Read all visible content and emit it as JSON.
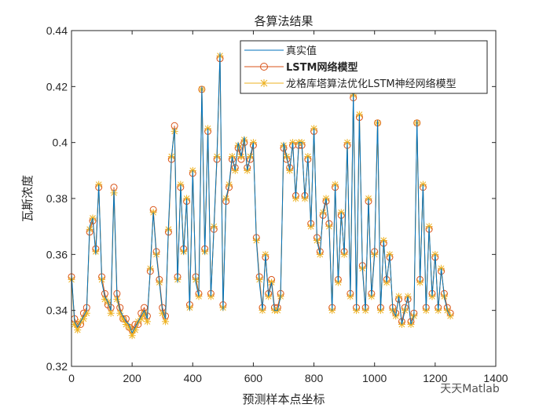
{
  "chart_data": {
    "type": "line",
    "title": "各算法结果",
    "xlabel": "预测样本点坐标",
    "ylabel": "瓦斯浓度",
    "xlim": [
      0,
      1400
    ],
    "ylim": [
      0.32,
      0.44
    ],
    "xticks": [
      "0",
      "200",
      "400",
      "600",
      "800",
      "1000",
      "1200",
      "1400"
    ],
    "yticks": [
      "0.32",
      "0.34",
      "0.36",
      "0.38",
      "0.4",
      "0.42",
      "0.44"
    ],
    "legend_position": "top-right",
    "x_step": 10,
    "series": [
      {
        "name": "真实值",
        "color": "#0072BD",
        "marker": "none",
        "values": [
          0.353,
          0.336,
          0.334,
          0.336,
          0.338,
          0.34,
          0.37,
          0.373,
          0.36,
          0.385,
          0.35,
          0.345,
          0.343,
          0.34,
          0.383,
          0.345,
          0.34,
          0.338,
          0.336,
          0.335,
          0.332,
          0.334,
          0.336,
          0.338,
          0.34,
          0.337,
          0.355,
          0.375,
          0.36,
          0.35,
          0.34,
          0.337,
          0.37,
          0.395,
          0.405,
          0.35,
          0.385,
          0.36,
          0.38,
          0.34,
          0.39,
          0.35,
          0.345,
          0.42,
          0.36,
          0.405,
          0.345,
          0.37,
          0.395,
          0.432,
          0.34,
          0.38,
          0.385,
          0.395,
          0.39,
          0.4,
          0.395,
          0.402,
          0.39,
          0.395,
          0.4,
          0.365,
          0.35,
          0.34,
          0.36,
          0.345,
          0.35,
          0.34,
          0.34,
          0.345,
          0.4,
          0.395,
          0.39,
          0.4,
          0.38,
          0.4,
          0.4,
          0.38,
          0.395,
          0.37,
          0.405,
          0.365,
          0.36,
          0.375,
          0.38,
          0.37,
          0.34,
          0.385,
          0.35,
          0.375,
          0.36,
          0.4,
          0.345,
          0.418,
          0.34,
          0.41,
          0.355,
          0.34,
          0.38,
          0.345,
          0.36,
          0.408,
          0.34,
          0.365,
          0.35,
          0.36,
          0.34,
          0.338,
          0.345,
          0.335,
          0.34,
          0.345,
          0.335,
          0.338,
          0.408,
          0.35,
          0.385,
          0.34,
          0.37,
          0.345,
          0.36,
          0.34,
          0.355,
          0.345,
          0.34,
          0.338
        ]
      },
      {
        "name": "LSTM网络模型",
        "color": "#D95319",
        "marker": "circle",
        "values": [
          0.352,
          0.337,
          0.335,
          0.335,
          0.339,
          0.341,
          0.368,
          0.372,
          0.362,
          0.384,
          0.352,
          0.346,
          0.342,
          0.341,
          0.384,
          0.346,
          0.341,
          0.337,
          0.337,
          0.334,
          0.333,
          0.335,
          0.335,
          0.339,
          0.341,
          0.338,
          0.354,
          0.376,
          0.361,
          0.351,
          0.341,
          0.338,
          0.368,
          0.394,
          0.406,
          0.352,
          0.384,
          0.362,
          0.379,
          0.342,
          0.389,
          0.352,
          0.346,
          0.419,
          0.362,
          0.404,
          0.346,
          0.369,
          0.394,
          0.43,
          0.342,
          0.379,
          0.384,
          0.394,
          0.391,
          0.398,
          0.394,
          0.4,
          0.391,
          0.394,
          0.399,
          0.366,
          0.352,
          0.341,
          0.359,
          0.346,
          0.351,
          0.341,
          0.341,
          0.346,
          0.398,
          0.394,
          0.391,
          0.399,
          0.381,
          0.399,
          0.399,
          0.381,
          0.394,
          0.371,
          0.404,
          0.366,
          0.361,
          0.374,
          0.379,
          0.371,
          0.341,
          0.384,
          0.351,
          0.374,
          0.361,
          0.399,
          0.346,
          0.416,
          0.341,
          0.409,
          0.356,
          0.341,
          0.379,
          0.346,
          0.361,
          0.407,
          0.341,
          0.364,
          0.351,
          0.359,
          0.341,
          0.339,
          0.344,
          0.336,
          0.341,
          0.344,
          0.336,
          0.339,
          0.407,
          0.351,
          0.384,
          0.341,
          0.369,
          0.346,
          0.359,
          0.341,
          0.354,
          0.346,
          0.341,
          0.339
        ]
      },
      {
        "name": "龙格库塔算法优化LSTM神经网络模型",
        "color": "#EDB120",
        "marker": "asterisk",
        "values": [
          0.351,
          0.335,
          0.333,
          0.336,
          0.337,
          0.339,
          0.369,
          0.373,
          0.361,
          0.385,
          0.351,
          0.344,
          0.343,
          0.339,
          0.382,
          0.344,
          0.339,
          0.337,
          0.335,
          0.334,
          0.331,
          0.333,
          0.336,
          0.337,
          0.339,
          0.336,
          0.355,
          0.375,
          0.36,
          0.35,
          0.339,
          0.336,
          0.369,
          0.395,
          0.404,
          0.351,
          0.385,
          0.361,
          0.38,
          0.341,
          0.39,
          0.351,
          0.345,
          0.419,
          0.361,
          0.405,
          0.345,
          0.37,
          0.395,
          0.431,
          0.341,
          0.38,
          0.385,
          0.395,
          0.39,
          0.399,
          0.395,
          0.401,
          0.39,
          0.395,
          0.4,
          0.365,
          0.351,
          0.34,
          0.36,
          0.345,
          0.35,
          0.34,
          0.34,
          0.345,
          0.399,
          0.395,
          0.39,
          0.4,
          0.38,
          0.4,
          0.4,
          0.38,
          0.395,
          0.37,
          0.405,
          0.365,
          0.36,
          0.375,
          0.38,
          0.37,
          0.34,
          0.385,
          0.35,
          0.375,
          0.36,
          0.4,
          0.345,
          0.417,
          0.34,
          0.41,
          0.355,
          0.34,
          0.38,
          0.345,
          0.36,
          0.407,
          0.34,
          0.365,
          0.35,
          0.36,
          0.34,
          0.338,
          0.345,
          0.335,
          0.34,
          0.345,
          0.335,
          0.338,
          0.407,
          0.35,
          0.385,
          0.34,
          0.37,
          0.345,
          0.36,
          0.34,
          0.355,
          0.345,
          0.34,
          0.338
        ]
      }
    ]
  },
  "watermark": "天天Matlab"
}
